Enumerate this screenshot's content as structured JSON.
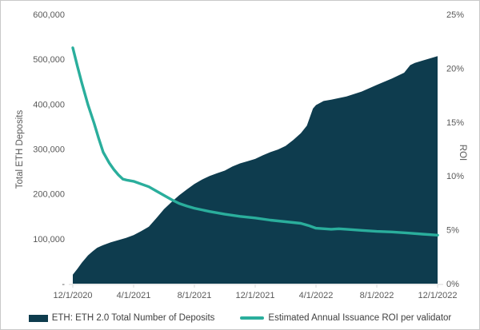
{
  "chart_data": {
    "type": "area",
    "title": "",
    "x_axis": {
      "tick_labels": [
        "12/1/2020",
        "4/1/2021",
        "8/1/2021",
        "12/1/2021",
        "4/1/2022",
        "8/1/2022",
        "12/1/2022"
      ],
      "tick_months": [
        0,
        4,
        8,
        12,
        16,
        20,
        24
      ],
      "months_total": 24
    },
    "left_axis": {
      "title": "Total ETH Deposits",
      "min": 0,
      "max": 600000,
      "tick_labels": [
        "600,000",
        "500,000",
        "400,000",
        "300,000",
        "200,000",
        "100,000",
        "-"
      ]
    },
    "right_axis": {
      "title": "ROI",
      "min": 0,
      "max": 25,
      "tick_labels": [
        "25%",
        "20%",
        "15%",
        "10%",
        "5%",
        "0%"
      ]
    },
    "series": [
      {
        "name": "ETH: ETH 2.0 Total Number of Deposits",
        "type": "area",
        "axis": "left",
        "color": "#0e3c4e",
        "points": [
          [
            0,
            20000
          ],
          [
            0.3,
            33000
          ],
          [
            0.6,
            47000
          ],
          [
            1,
            63000
          ],
          [
            1.3,
            72000
          ],
          [
            1.6,
            80000
          ],
          [
            2,
            86000
          ],
          [
            2.5,
            92000
          ],
          [
            3,
            97000
          ],
          [
            3.5,
            102000
          ],
          [
            4,
            108000
          ],
          [
            4.5,
            117000
          ],
          [
            5,
            127000
          ],
          [
            5.5,
            146000
          ],
          [
            6,
            166000
          ],
          [
            6.5,
            182000
          ],
          [
            7,
            197000
          ],
          [
            7.5,
            210000
          ],
          [
            8,
            222000
          ],
          [
            8.5,
            232000
          ],
          [
            9,
            240000
          ],
          [
            9.5,
            246000
          ],
          [
            10,
            252000
          ],
          [
            10.5,
            261000
          ],
          [
            11,
            268000
          ],
          [
            11.5,
            273000
          ],
          [
            12,
            278000
          ],
          [
            12.5,
            286000
          ],
          [
            13,
            293000
          ],
          [
            13.5,
            299000
          ],
          [
            14,
            307000
          ],
          [
            14.5,
            320000
          ],
          [
            15,
            335000
          ],
          [
            15.4,
            352000
          ],
          [
            15.8,
            390000
          ],
          [
            16,
            398000
          ],
          [
            16.5,
            407000
          ],
          [
            17,
            410000
          ],
          [
            18,
            417000
          ],
          [
            19,
            428000
          ],
          [
            20,
            443000
          ],
          [
            21,
            457000
          ],
          [
            21.8,
            470000
          ],
          [
            22.2,
            487000
          ],
          [
            22.5,
            492000
          ],
          [
            23,
            497000
          ],
          [
            24,
            507000
          ]
        ]
      },
      {
        "name": "Estimated Annual Issuance ROI per validator",
        "type": "line",
        "axis": "right",
        "color": "#2aae9c",
        "points": [
          [
            0,
            21.9
          ],
          [
            0.3,
            20.2
          ],
          [
            0.6,
            18.6
          ],
          [
            1,
            16.6
          ],
          [
            1.4,
            14.9
          ],
          [
            1.7,
            13.5
          ],
          [
            2,
            12.2
          ],
          [
            2.4,
            11.2
          ],
          [
            2.7,
            10.6
          ],
          [
            3,
            10.1
          ],
          [
            3.3,
            9.7
          ],
          [
            3.6,
            9.6
          ],
          [
            4,
            9.5
          ],
          [
            4.5,
            9.25
          ],
          [
            5,
            9.0
          ],
          [
            5.5,
            8.6
          ],
          [
            6,
            8.2
          ],
          [
            6.5,
            7.8
          ],
          [
            7,
            7.45
          ],
          [
            7.5,
            7.2
          ],
          [
            8,
            7.0
          ],
          [
            9,
            6.7
          ],
          [
            10,
            6.45
          ],
          [
            11,
            6.25
          ],
          [
            12,
            6.1
          ],
          [
            13,
            5.9
          ],
          [
            14,
            5.75
          ],
          [
            15,
            5.6
          ],
          [
            15.5,
            5.4
          ],
          [
            16,
            5.15
          ],
          [
            17,
            5.05
          ],
          [
            17.5,
            5.1
          ],
          [
            18,
            5.05
          ],
          [
            19,
            4.95
          ],
          [
            20,
            4.85
          ],
          [
            21,
            4.8
          ],
          [
            22,
            4.7
          ],
          [
            23,
            4.6
          ],
          [
            24,
            4.5
          ]
        ]
      }
    ],
    "grid": false,
    "legend_position": "bottom"
  },
  "legend": {
    "items": [
      {
        "label": "ETH: ETH 2.0 Total Number of Deposits"
      },
      {
        "label": "Estimated Annual Issuance ROI per validator"
      }
    ]
  },
  "colors": {
    "area_series": "#0e3c4e",
    "line_series": "#2aae9c",
    "axis_text": "#595959",
    "legend_text": "#404040",
    "axis_line": "#d9d9d9"
  }
}
